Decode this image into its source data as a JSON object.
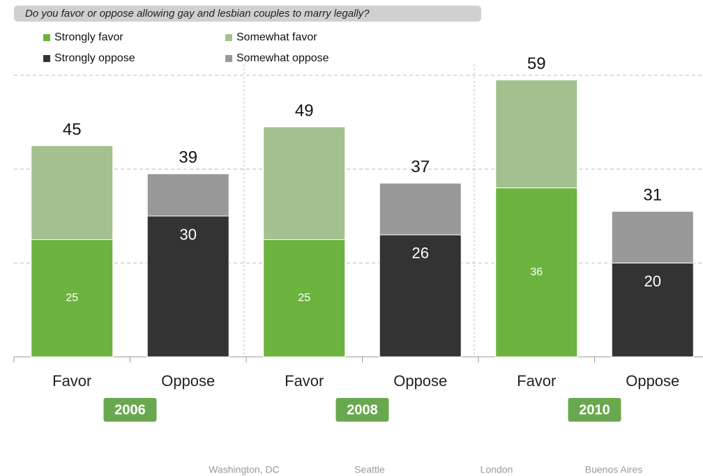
{
  "chart_data": {
    "type": "stacked_bar",
    "question": "Do you favor or oppose allowing gay and lesbian couples to marry legally?",
    "categories": [
      "Favor",
      "Oppose",
      "Favor",
      "Oppose",
      "Favor",
      "Oppose"
    ],
    "groups": [
      "2006",
      "2008",
      "2010"
    ],
    "series": [
      {
        "name": "Strongly favor",
        "color": "#6db33f",
        "values": [
          25,
          null,
          25,
          null,
          36,
          null
        ]
      },
      {
        "name": "Somewhat favor",
        "color": "#a3c08f",
        "values": [
          20,
          null,
          24,
          null,
          23,
          null
        ]
      },
      {
        "name": "Strongly oppose",
        "color": "#333333",
        "values": [
          null,
          30,
          null,
          26,
          null,
          20
        ]
      },
      {
        "name": "Somewhat oppose",
        "color": "#999999",
        "values": [
          null,
          9,
          null,
          11,
          null,
          11
        ]
      }
    ],
    "totals": [
      45,
      39,
      49,
      37,
      59,
      31
    ],
    "ylim": [
      0,
      60
    ],
    "yticks": [
      0,
      20,
      40,
      60
    ],
    "grid": true,
    "footer_links": [
      "Washington, DC",
      "Seattle",
      "London",
      "Buenos Aires"
    ]
  }
}
